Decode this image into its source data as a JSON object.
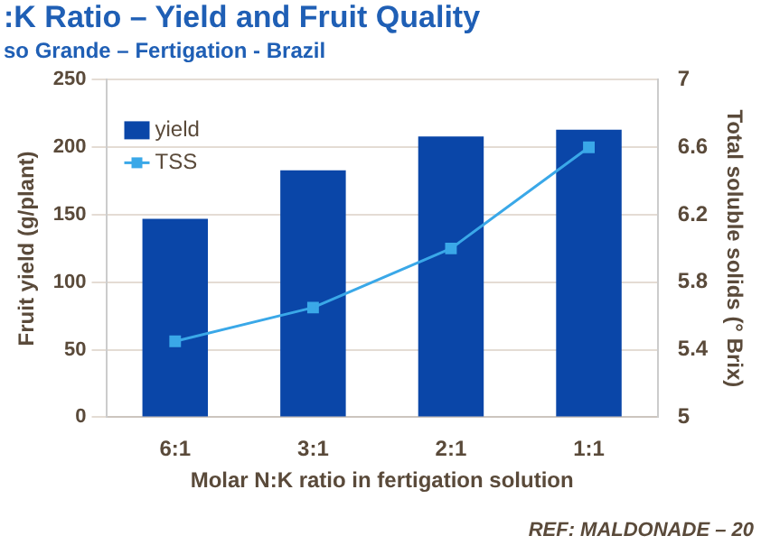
{
  "chart_data": {
    "type": "bar",
    "title": ":K Ratio – Yield and Fruit Quality",
    "subtitle": "so Grande – Fertigation - Brazil",
    "xlabel": "Molar N:K ratio in fertigation solution",
    "ylabel": "Fruit yield (g/plant)",
    "y2label": "Total soluble solids (° Brix)",
    "categories": [
      "6:1",
      "3:1",
      "2:1",
      "1:1"
    ],
    "series": [
      {
        "name": "yield",
        "color": "#0a46a8",
        "values": [
          147,
          183,
          208,
          213
        ]
      },
      {
        "name": "TSS",
        "type": "line",
        "axis": "y2",
        "color": "#3aa8e8",
        "values": [
          5.45,
          5.65,
          6.0,
          6.6
        ]
      }
    ],
    "ylim": [
      0,
      250
    ],
    "yticks": [
      0,
      50,
      100,
      150,
      200,
      250
    ],
    "y2lim": [
      5,
      7
    ],
    "y2ticks": [
      5,
      5.4,
      5.8,
      6.2,
      6.6,
      7
    ],
    "grid": "y",
    "legend": "top left",
    "marker": "square",
    "annotations": [
      "REF: MALDONADE – 20"
    ]
  }
}
